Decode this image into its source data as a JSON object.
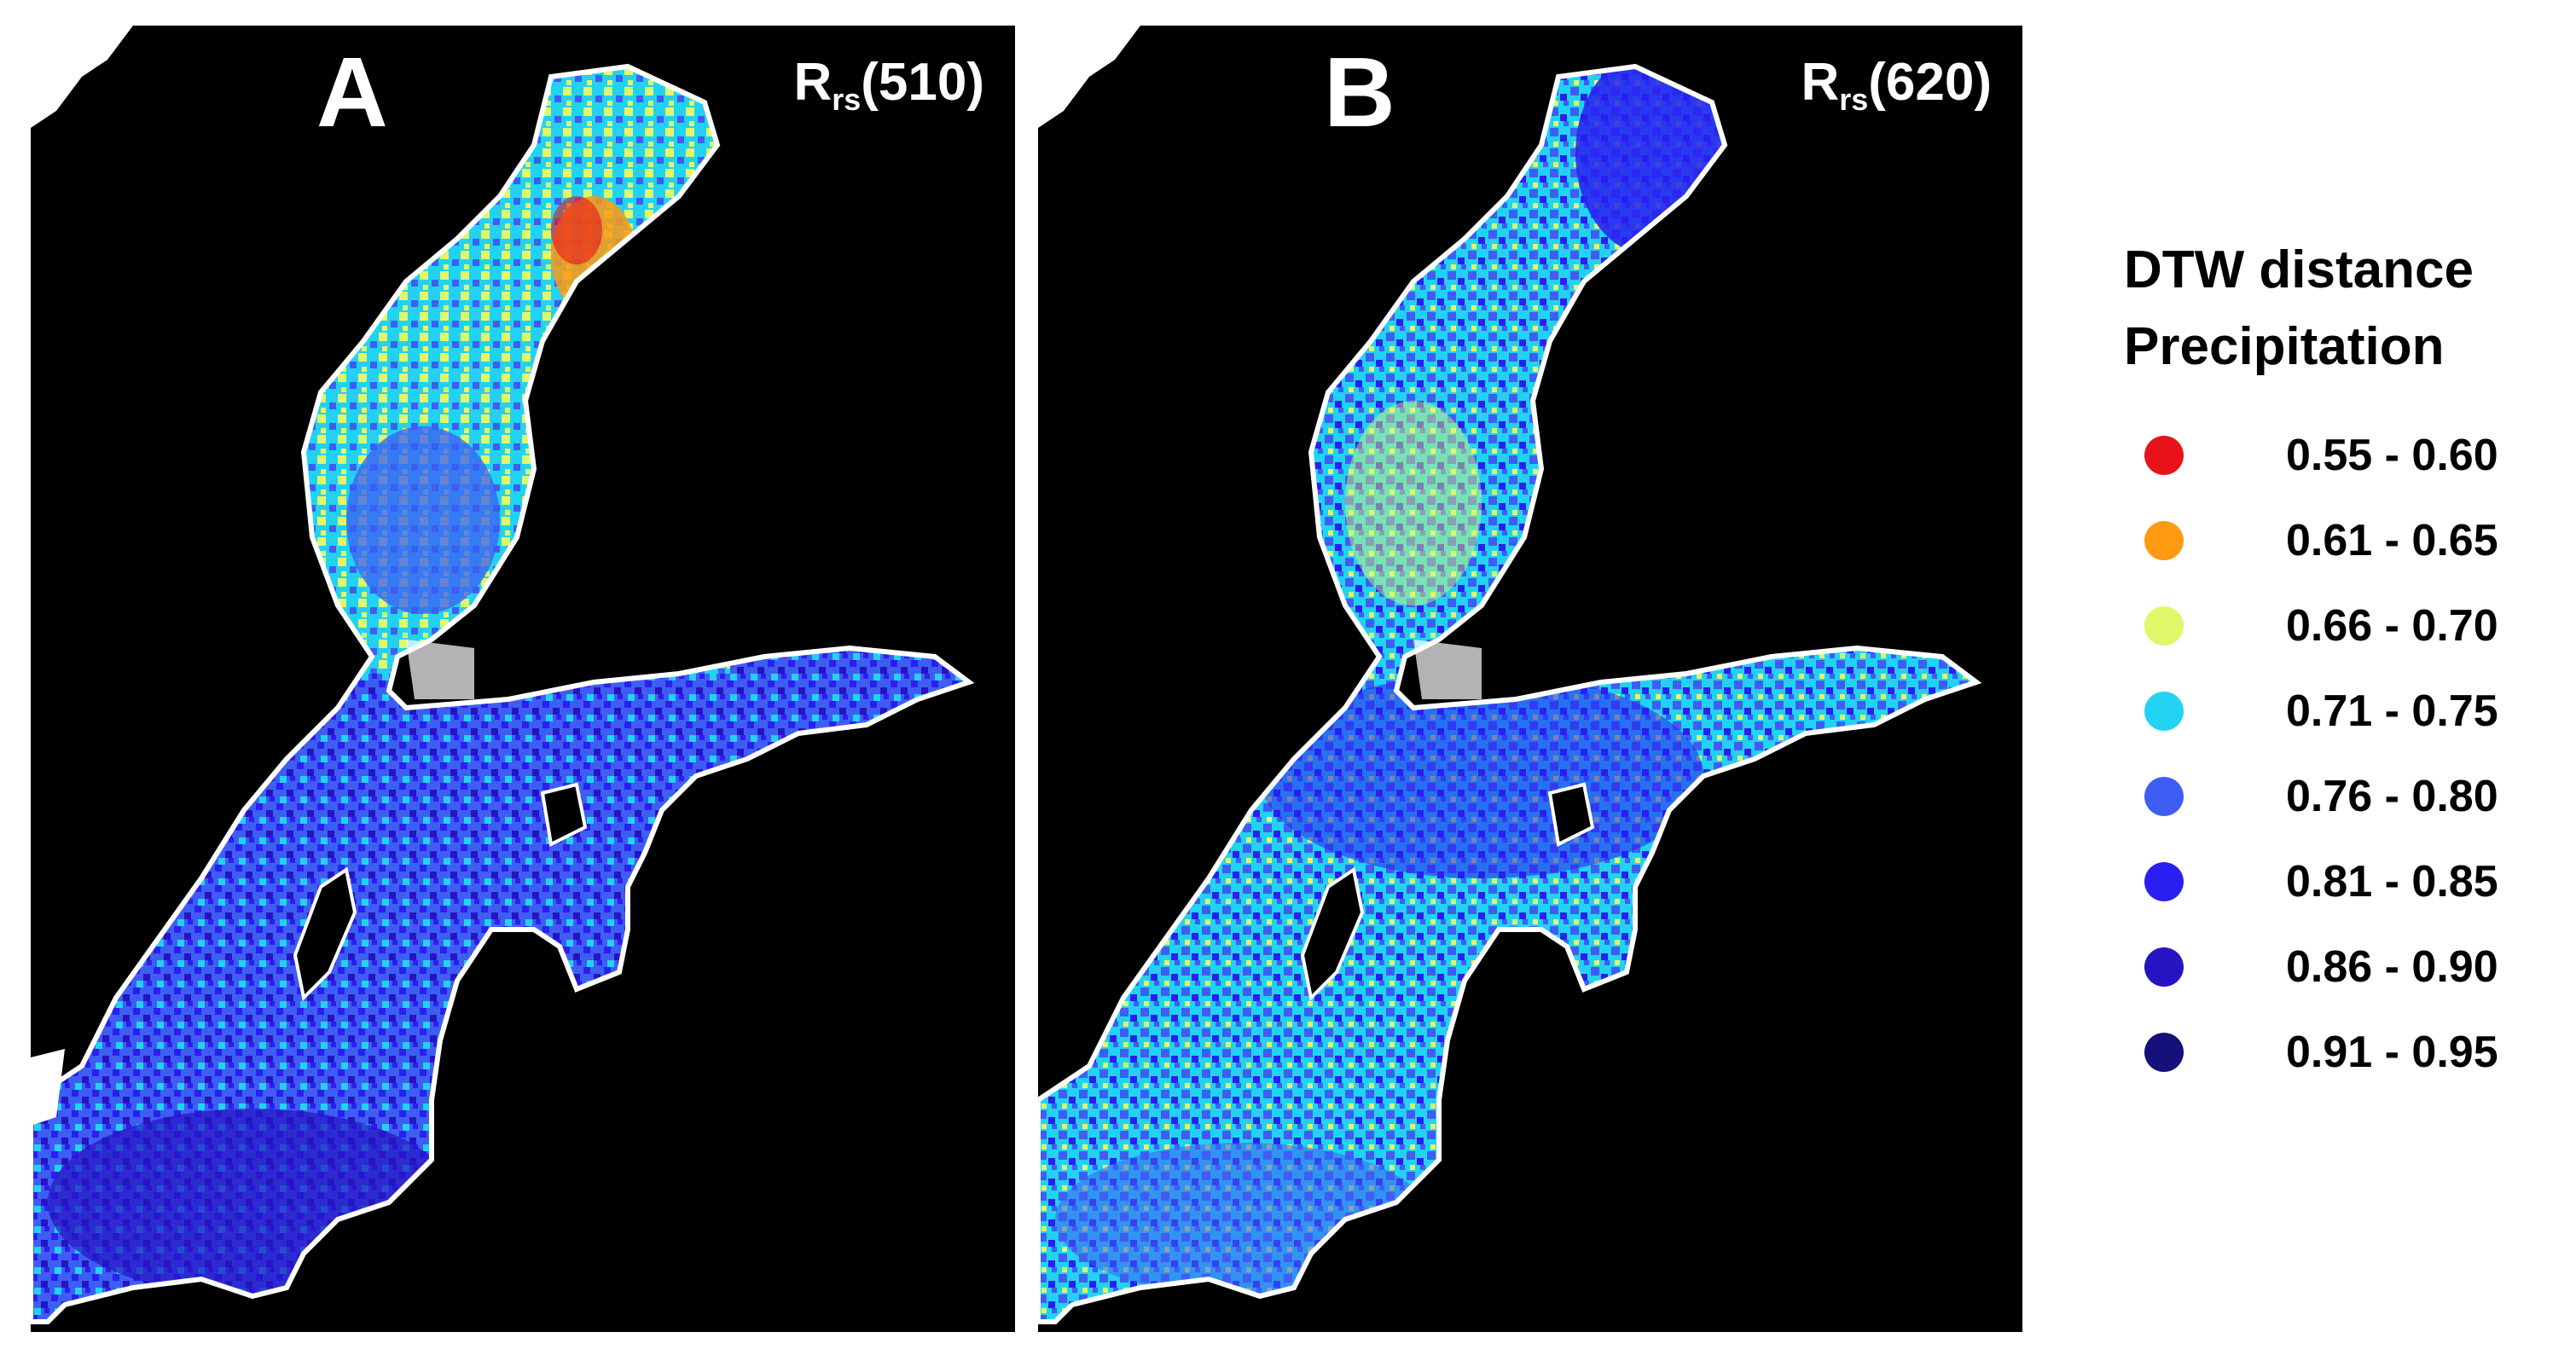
{
  "panels": [
    {
      "letter": "A",
      "label_main": "R",
      "label_sub": "rs",
      "label_suffix": "(510)",
      "dominant_classes": [
        "0.81 - 0.85",
        "0.76 - 0.80",
        "0.71 - 0.75",
        "0.66 - 0.70"
      ]
    },
    {
      "letter": "B",
      "label_main": "R",
      "label_sub": "rs",
      "label_suffix": "(620)",
      "dominant_classes": [
        "0.81 - 0.85",
        "0.76 - 0.80",
        "0.71 - 0.75"
      ]
    }
  ],
  "legend": {
    "title_line1": "DTW distance",
    "title_line2": "Precipitation",
    "items": [
      {
        "range": "0.55 - 0.60",
        "color": "#e8121b"
      },
      {
        "range": "0.61 - 0.65",
        "color": "#ff9a12"
      },
      {
        "range": "0.66 - 0.70",
        "color": "#e1f76a"
      },
      {
        "range": "0.71 - 0.75",
        "color": "#22d2f2"
      },
      {
        "range": "0.76 - 0.80",
        "color": "#3e5ef3"
      },
      {
        "range": "0.81 - 0.85",
        "color": "#2a1ff0"
      },
      {
        "range": "0.86 - 0.90",
        "color": "#2614c2"
      },
      {
        "range": "0.91 - 0.95",
        "color": "#16107a"
      }
    ]
  },
  "colors": {
    "background": "#000000",
    "land_outline": "#ffffff"
  }
}
